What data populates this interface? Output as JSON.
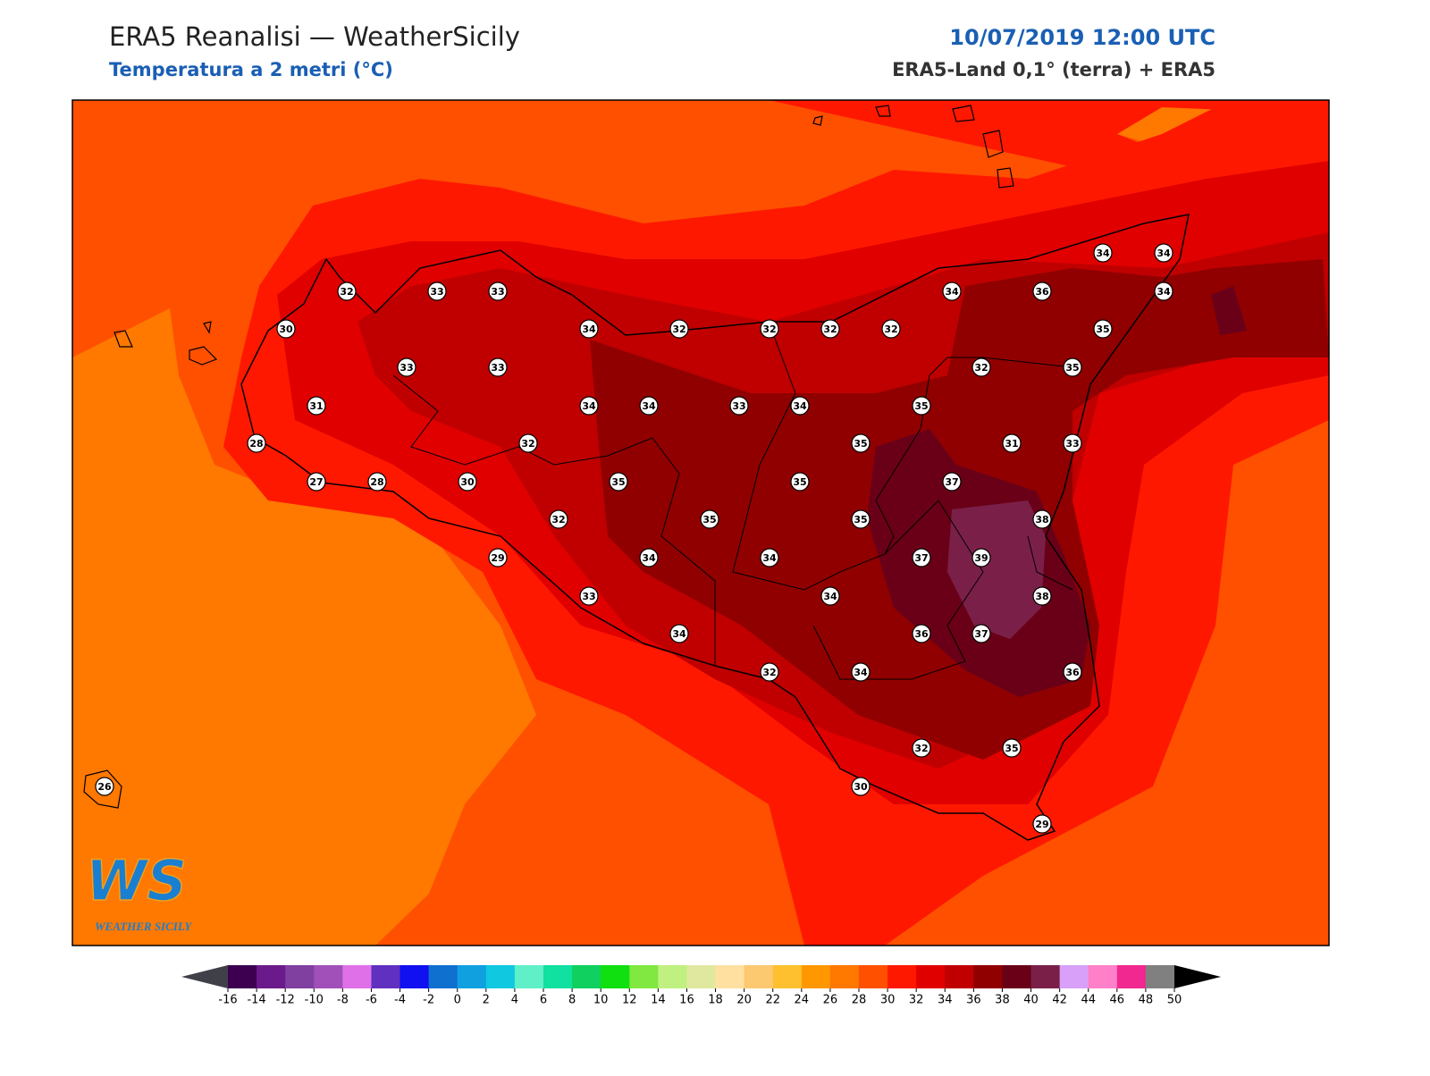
{
  "header": {
    "title": "ERA5 Reanalisi — WeatherSicily",
    "subtitle": "Temperatura a 2 metri (°C)",
    "datetime": "10/07/2019 12:00 UTC",
    "source": "ERA5-Land 0,1° (terra) + ERA5"
  },
  "stations": [
    34,
    34,
    32,
    33,
    33,
    34,
    36,
    34,
    30,
    34,
    32,
    32,
    32,
    32,
    35,
    33,
    33,
    32,
    35,
    31,
    34,
    34,
    33,
    34,
    35,
    28,
    32,
    35,
    31,
    33,
    27,
    28,
    30,
    35,
    35,
    37,
    32,
    35,
    35,
    38,
    29,
    34,
    34,
    37,
    39,
    33,
    34,
    38,
    34,
    36,
    37,
    32,
    34,
    36,
    32,
    35,
    30,
    29,
    26
  ],
  "colorbar": {
    "ticks": [
      -16,
      -14,
      -12,
      -10,
      -8,
      -6,
      -4,
      -2,
      0,
      2,
      4,
      6,
      8,
      10,
      12,
      14,
      16,
      18,
      20,
      22,
      24,
      26,
      28,
      30,
      32,
      34,
      36,
      38,
      40,
      42,
      44,
      46,
      48,
      50
    ],
    "colors": [
      "#3d0050",
      "#6a1a8a",
      "#8040a0",
      "#a050b8",
      "#e070e8",
      "#6030c0",
      "#1010f0",
      "#1070d0",
      "#10a0e0",
      "#10c8e0",
      "#60f0c8",
      "#10e0a0",
      "#10d060",
      "#10e010",
      "#80e840",
      "#c0f080",
      "#e0e8a0",
      "#ffe0a0",
      "#fcc870",
      "#ffc030",
      "#ff9800",
      "#ff7800",
      "#ff5000",
      "#ff1800",
      "#e00000",
      "#c00000",
      "#900000",
      "#6a0018",
      "#7a2048",
      "#d8a0f8",
      "#ff80c8",
      "#f02890",
      "#808080",
      "#404040"
    ],
    "under_color": "#404048",
    "over_color": "#000000"
  },
  "logo": {
    "initials": "WS",
    "text": "WEATHER SICILY"
  }
}
